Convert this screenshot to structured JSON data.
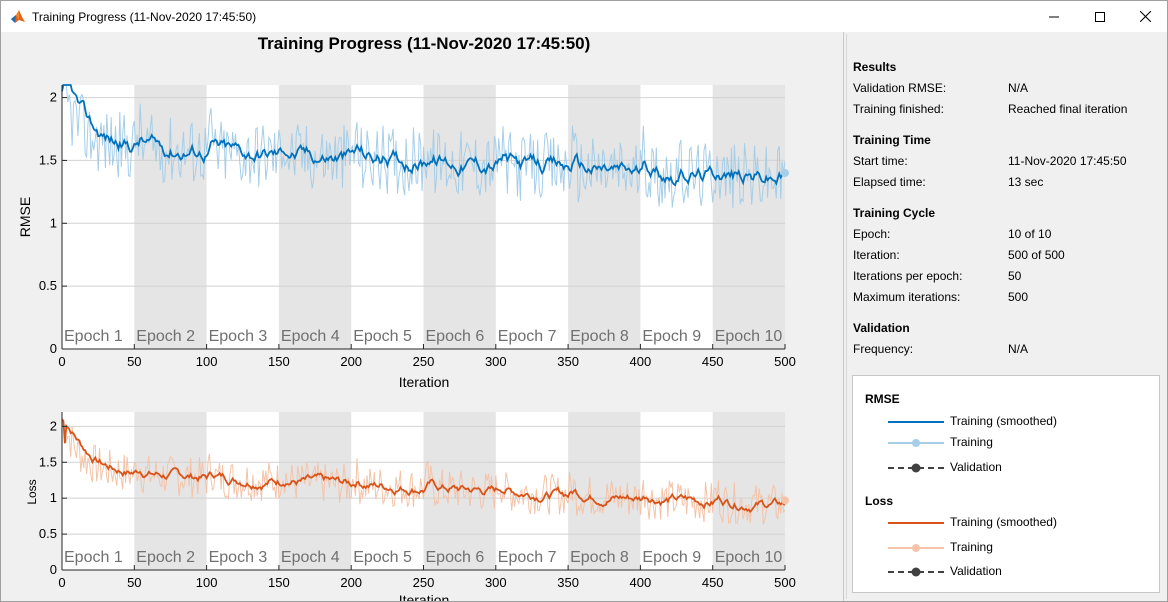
{
  "window": {
    "title": "Training Progress (11-Nov-2020 17:45:50)",
    "icon": "matlab-icon",
    "buttons": [
      "minimize-icon",
      "maximize-icon",
      "close-icon"
    ]
  },
  "figure": {
    "title": "Training Progress (11-Nov-2020 17:45:50)"
  },
  "results": {
    "heading": "Results",
    "rows": [
      {
        "label": "Validation RMSE:",
        "value": "N/A"
      },
      {
        "label": "Training finished:",
        "value": "Reached final iteration"
      }
    ]
  },
  "training_time": {
    "heading": "Training Time",
    "rows": [
      {
        "label": "Start time:",
        "value": "11-Nov-2020 17:45:50"
      },
      {
        "label": "Elapsed time:",
        "value": "13 sec"
      }
    ]
  },
  "training_cycle": {
    "heading": "Training Cycle",
    "rows": [
      {
        "label": "Epoch:",
        "value": "10 of 10"
      },
      {
        "label": "Iteration:",
        "value": "500 of 500"
      },
      {
        "label": "Iterations per epoch:",
        "value": "50"
      },
      {
        "label": "Maximum iterations:",
        "value": "500"
      }
    ]
  },
  "validation": {
    "heading": "Validation",
    "rows": [
      {
        "label": "Frequency:",
        "value": "N/A"
      }
    ]
  },
  "legend": {
    "rmse_heading": "RMSE",
    "loss_heading": "Loss",
    "smoothed": "Training (smoothed)",
    "training": "Training",
    "validation": "Validation"
  },
  "colors": {
    "rmse_smoothed": "#0072bd",
    "rmse_raw": "#a6cee8",
    "loss_smoothed": "#d95319",
    "loss_raw": "#f4c3a8",
    "validation": "#404040",
    "epoch_band": "#e5e5e5"
  },
  "chart_data": [
    {
      "type": "line",
      "name": "rmse",
      "xlabel": "Iteration",
      "ylabel": "RMSE",
      "xlim": [
        0,
        500
      ],
      "ylim": [
        0,
        2.1
      ],
      "xticks": [
        0,
        50,
        100,
        150,
        200,
        250,
        300,
        350,
        400,
        450,
        500
      ],
      "yticks": [
        0,
        0.5,
        1,
        1.5,
        2
      ],
      "epoch_labels": [
        "Epoch 1",
        "Epoch 2",
        "Epoch 3",
        "Epoch 4",
        "Epoch 5",
        "Epoch 6",
        "Epoch 7",
        "Epoch 8",
        "Epoch 9",
        "Epoch 10"
      ],
      "iterations_per_epoch": 50,
      "start_value": 2.05,
      "end_value": 1.35,
      "final_marker_value": 1.4,
      "series": [
        {
          "name": "Training (smoothed)"
        },
        {
          "name": "Training"
        }
      ]
    },
    {
      "type": "line",
      "name": "loss",
      "xlabel": "Iteration",
      "ylabel": "Loss",
      "xlim": [
        0,
        500
      ],
      "ylim": [
        0,
        2.2
      ],
      "xticks": [
        0,
        50,
        100,
        150,
        200,
        250,
        300,
        350,
        400,
        450,
        500
      ],
      "yticks": [
        0,
        0.5,
        1,
        1.5,
        2
      ],
      "yticklabels": [
        "0",
        "0.5",
        "1",
        "1.5",
        "2"
      ],
      "epoch_labels": [
        "Epoch 1",
        "Epoch 2",
        "Epoch 3",
        "Epoch 4",
        "Epoch 5",
        "Epoch 6",
        "Epoch 7",
        "Epoch 8",
        "Epoch 9",
        "Epoch 10"
      ],
      "iterations_per_epoch": 50,
      "start_value": 2.1,
      "end_value": 0.9,
      "final_marker_value": 0.97,
      "series": [
        {
          "name": "Training (smoothed)"
        },
        {
          "name": "Training"
        }
      ]
    }
  ]
}
